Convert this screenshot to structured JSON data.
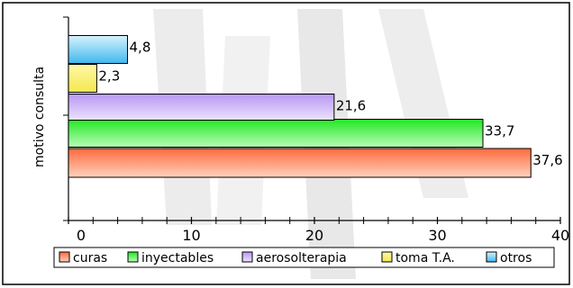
{
  "chart_data": {
    "type": "bar",
    "orientation": "horizontal",
    "ylabel": "motivo consulta",
    "xlim": [
      0,
      40
    ],
    "x_ticks": [
      0,
      10,
      20,
      30,
      40
    ],
    "grid": false,
    "legend_position": "bottom",
    "series": [
      {
        "name": "curas",
        "value": 37.6,
        "label": "37,6",
        "color": "#ff7a50"
      },
      {
        "name": "inyectables",
        "value": 33.7,
        "label": "33,7",
        "color": "#44ee44"
      },
      {
        "name": "aerosolterapia",
        "value": 21.6,
        "label": "21,6",
        "color": "#c9aef7"
      },
      {
        "name": "toma T.A.",
        "value": 2.3,
        "label": "2,3",
        "color": "#fbf58a"
      },
      {
        "name": "otros",
        "value": 4.8,
        "label": "4,8",
        "color": "#66ccf4"
      }
    ]
  }
}
